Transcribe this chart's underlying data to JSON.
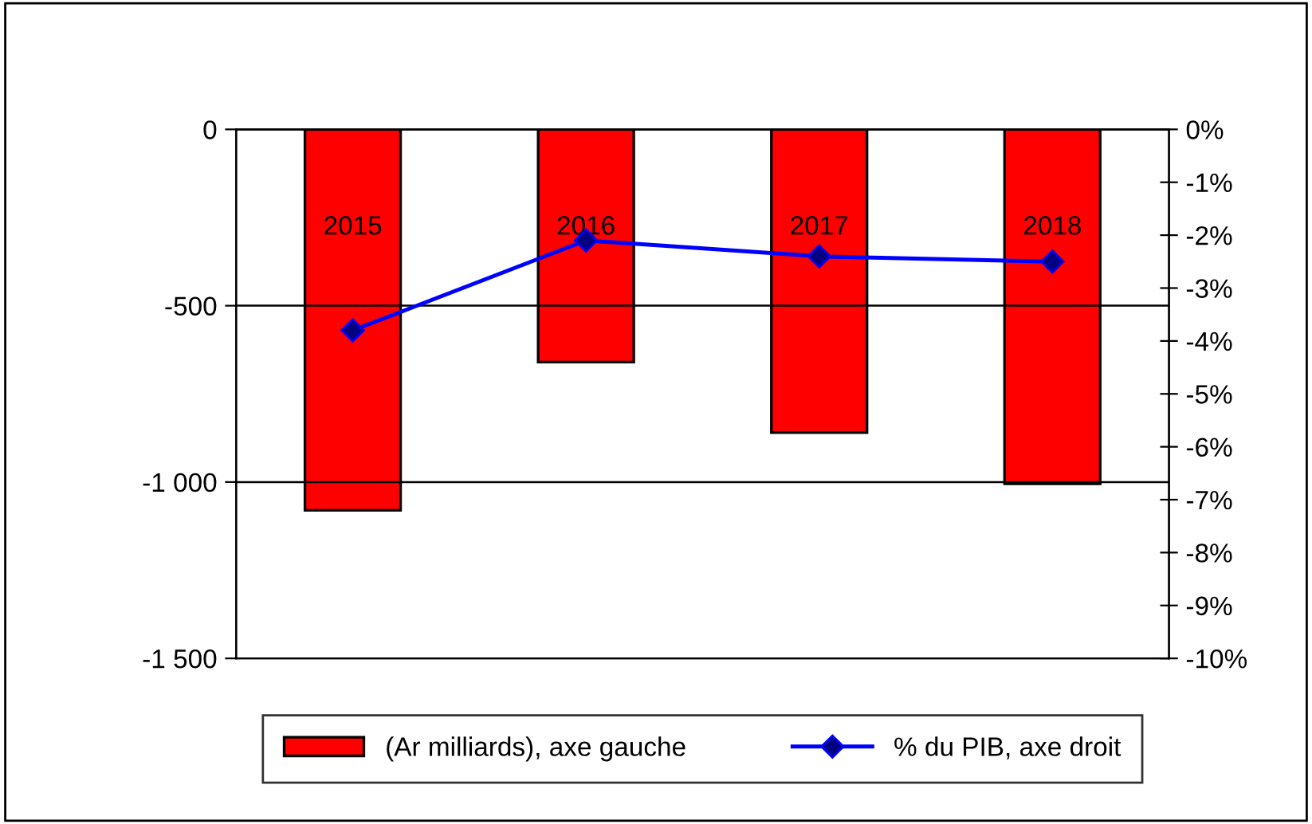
{
  "chart_data": {
    "type": "bar",
    "categories": [
      "2015",
      "2016",
      "2017",
      "2018"
    ],
    "series": [
      {
        "name": "(Ar milliards), axe gauche",
        "color": "#ff0000",
        "values": [
          -1080,
          -660,
          -860,
          -1005
        ]
      },
      {
        "name": "% du PIB, axe droit",
        "type": "line",
        "axis": "y2",
        "color": "#0000ff",
        "marker": "diamond",
        "values": [
          -3.8,
          -2.1,
          -2.4,
          -2.5
        ]
      }
    ],
    "ylim": [
      -1500,
      0
    ],
    "yticks": [
      {
        "value": -1500,
        "label": "-1 500"
      },
      {
        "value": -1000,
        "label": "-1 000"
      },
      -500,
      0
    ],
    "y2lim": [
      -10,
      0
    ],
    "y2ticks": [
      {
        "value": -10,
        "label": "-10%"
      },
      {
        "value": -9,
        "label": "-9%"
      },
      {
        "value": -8,
        "label": "-8%"
      },
      {
        "value": -7,
        "label": "-7%"
      },
      {
        "value": -6,
        "label": "-6%"
      },
      {
        "value": -5,
        "label": "-5%"
      },
      {
        "value": -4,
        "label": "-4%"
      },
      {
        "value": -3,
        "label": "-3%"
      },
      {
        "value": -2,
        "label": "-2%"
      },
      {
        "value": -1,
        "label": "-1%"
      },
      {
        "value": 0,
        "label": "0%"
      }
    ],
    "grid": "y",
    "legend": "bottom"
  }
}
